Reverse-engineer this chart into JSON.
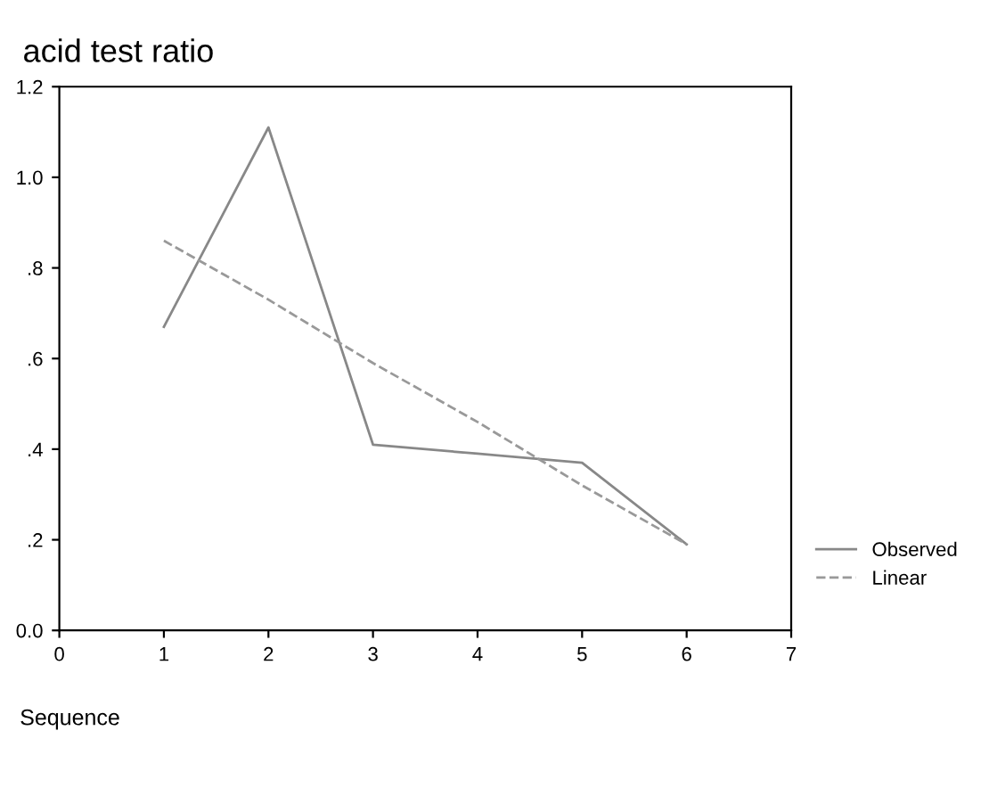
{
  "chart_data": {
    "type": "line",
    "title": "acid test ratio",
    "xlabel": "Sequence",
    "x": [
      1,
      2,
      3,
      4,
      5,
      6
    ],
    "series": [
      {
        "name": "Observed",
        "color": "#888888",
        "values": [
          0.67,
          1.11,
          0.41,
          0.39,
          0.37,
          0.19
        ],
        "line_style": "solid"
      },
      {
        "name": "Linear",
        "color": "#999999",
        "values": [
          0.86,
          0.73,
          0.59,
          0.46,
          0.32,
          0.19
        ],
        "line_style": "dashed"
      }
    ],
    "xlim": [
      0,
      7
    ],
    "xticks": [
      0,
      1,
      2,
      3,
      4,
      5,
      6,
      7
    ],
    "ylim": [
      0,
      1.2
    ],
    "yticks": [
      {
        "value": 0,
        "label": "0.0"
      },
      {
        "value": 0.2,
        "label": ".2"
      },
      {
        "value": 0.4,
        "label": ".4"
      },
      {
        "value": 0.6,
        "label": ".6"
      },
      {
        "value": 0.8,
        "label": ".8"
      },
      {
        "value": 1.0,
        "label": "1.0"
      },
      {
        "value": 1.2,
        "label": "1.2"
      }
    ],
    "grid": false,
    "legend": "right"
  }
}
